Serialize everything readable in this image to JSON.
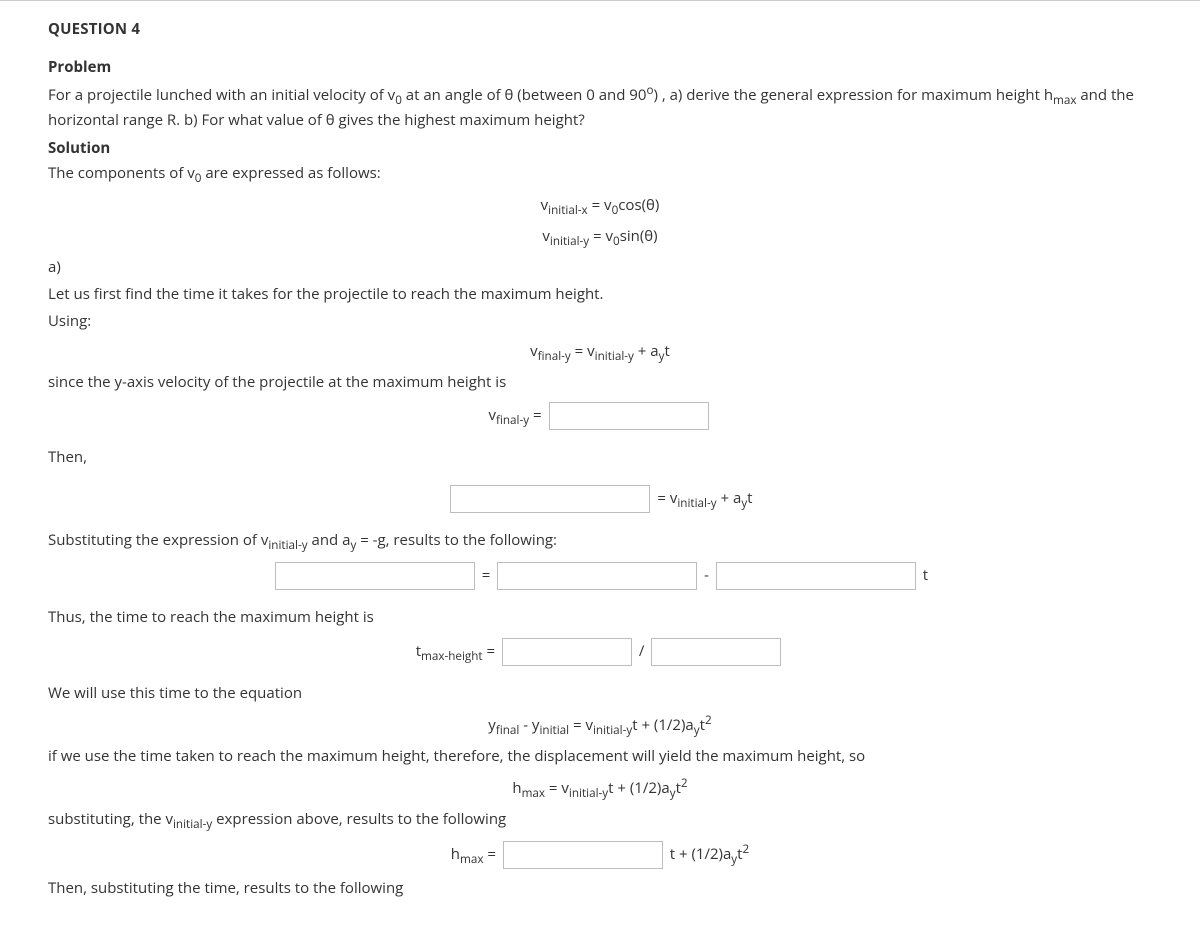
{
  "question_label": "QUESTION 4",
  "headings": {
    "problem": "Problem",
    "solution": "Solution"
  },
  "problem_text": "For a projectile lunched with an initial velocity of v0 at an angle of θ (between 0 and 90o) , a) derive the general expression for maximum height hmax and the horizontal range R. b) For what value of θ gives the highest maximum height?",
  "lines": {
    "components_intro": "The components of v0 are expressed as follows:",
    "eq_vx": "vinitial-x = v0cos(θ)",
    "eq_vy": "vinitial-y = v0sin(θ)",
    "part_a": "a)",
    "let_us": "Let us first find the time it takes for the projectile to reach the maximum height.",
    "using": "Using:",
    "eq_vfy": "vfinal-y = vinitial-y + ayt",
    "since": "since the y-axis velocity of the projectile at the maximum height is",
    "vfy_label": "vfinal-y = ",
    "then": "Then,",
    "eq_after_blank": " = vinitial-y + ayt",
    "subst_intro": "Substituting the expression of vinitial-y and ay = -g, results to the following:",
    "equals": " = ",
    "minus": " - ",
    "t_suffix": " t",
    "thus": "Thus, the time to reach the maximum height is",
    "tmax_label": "tmax-height = ",
    "slash": " / ",
    "we_will": "We will use this time to the equation",
    "eq_yfinal": "yfinal - yinitial = vinitial-yt + (1/2)ayt2",
    "if_we_use": "if we use the time taken to reach the maximum height, therefore, the displacement will yield the maximum height, so",
    "eq_hmax1": "hmax = vinitial-yt + (1/2)ayt2",
    "subst2": "substituting, the vinitial-y expression above, results to the following",
    "hmax_label": "hmax = ",
    "hmax_tail": " t + (1/2)ayt2",
    "then_sub": "Then, substituting the time, results to the following"
  }
}
